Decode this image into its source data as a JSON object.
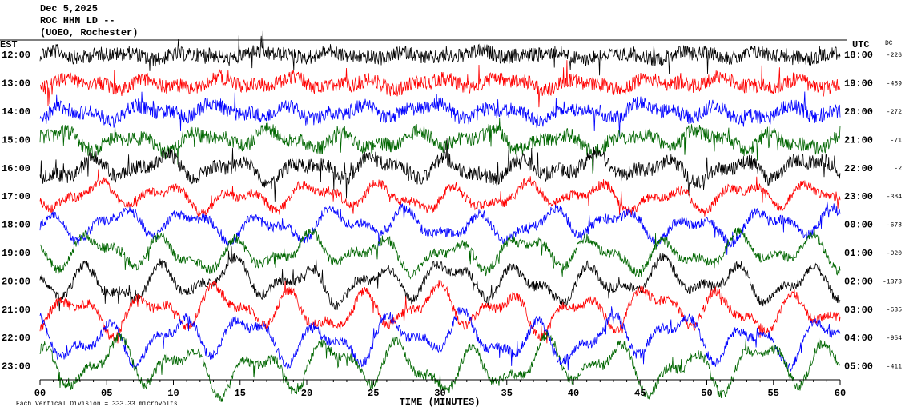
{
  "header": {
    "date": "Dec 5,2025",
    "station": "ROC HHN LD --",
    "location": "(UOEO, Rochester)"
  },
  "left_axis": {
    "title": "EST",
    "labels": [
      "12:00",
      "13:00",
      "14:00",
      "15:00",
      "16:00",
      "17:00",
      "18:00",
      "19:00",
      "20:00",
      "21:00",
      "22:00",
      "23:00"
    ]
  },
  "right_axis": {
    "title": "UTC",
    "labels": [
      "18:00",
      "19:00",
      "20:00",
      "21:00",
      "22:00",
      "23:00",
      "00:00",
      "01:00",
      "02:00",
      "03:00",
      "04:00",
      "05:00"
    ]
  },
  "dc": {
    "title": "DC",
    "values": [
      "-226",
      "-459",
      "-272",
      "-71",
      "-2",
      "-384",
      "-678",
      "-920",
      "-1373",
      "-635",
      "-954",
      "-411"
    ]
  },
  "x_axis": {
    "title": "TIME (MINUTES)",
    "ticks": [
      "00",
      "05",
      "10",
      "15",
      "20",
      "25",
      "30",
      "35",
      "40",
      "45",
      "50",
      "55",
      "60"
    ]
  },
  "footer": {
    "scale_note": "Each Vertical Division =  333.33 microvolts"
  }
}
